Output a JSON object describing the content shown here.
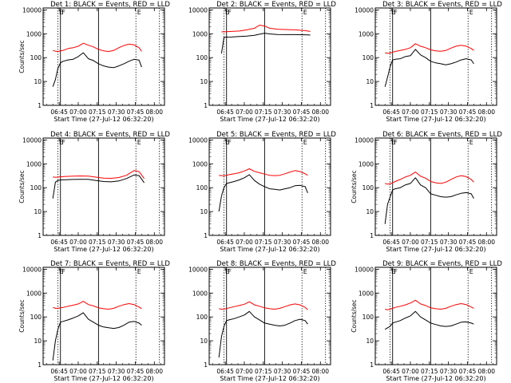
{
  "figure": {
    "time_range_label": "Start Time (27-Jul-12 06:32:20)",
    "x_ticks": [
      "06:45",
      "07:00",
      "07:15",
      "07:30",
      "07:45",
      "08:00"
    ],
    "x_tick_minutes": [
      45,
      60,
      75,
      90,
      105,
      120
    ],
    "x_range_minutes": [
      32.33,
      128.0
    ],
    "y_ticks": [
      "1",
      "10",
      "100",
      "1000",
      "10000"
    ],
    "y_tick_values": [
      1,
      10,
      100,
      1000,
      10000
    ],
    "y_range": [
      1,
      12000
    ],
    "y_scale": "log",
    "markers": [
      {
        "label": "E",
        "minute": 44.0,
        "style": "dotted"
      },
      {
        "label": "F",
        "minute": 46.0,
        "style": "solid"
      },
      {
        "label": "",
        "minute": 76.0,
        "style": "solid"
      },
      {
        "label": "E",
        "minute": 105.5,
        "style": "dotted"
      },
      {
        "label": "",
        "minute": 124.0,
        "style": "dotted"
      }
    ],
    "colors": {
      "events": "#000000",
      "lld": "#ff0000"
    }
  },
  "chart_data": [
    {
      "type": "line",
      "title": "Det 1: BLACK = Events, RED = LLD",
      "xlabel": "Start Time (27-Jul-12 06:32:20)",
      "ylabel": "Counts/sec",
      "scale": "log",
      "x": [
        40,
        42,
        44,
        46,
        48,
        52,
        56,
        60,
        64,
        68,
        72,
        76,
        80,
        84,
        88,
        92,
        96,
        100,
        104,
        108,
        110
      ],
      "series": [
        {
          "name": "Events",
          "color": "#000000",
          "values": [
            6,
            12,
            35,
            60,
            70,
            80,
            85,
            110,
            160,
            90,
            75,
            55,
            45,
            40,
            38,
            45,
            55,
            70,
            85,
            78,
            40
          ]
        },
        {
          "name": "LLD",
          "color": "#ff0000",
          "values": [
            200,
            185,
            180,
            190,
            200,
            240,
            260,
            300,
            400,
            330,
            280,
            220,
            190,
            180,
            200,
            260,
            320,
            370,
            340,
            260,
            180
          ]
        }
      ]
    },
    {
      "type": "line",
      "title": "Det 2: BLACK = Events, RED = LLD",
      "xlabel": "Start Time (27-Jul-12 06:32:20)",
      "ylabel": "",
      "scale": "log",
      "x": [
        42,
        44,
        46,
        50,
        56,
        62,
        68,
        72,
        76,
        80,
        86,
        92,
        100,
        108,
        112
      ],
      "series": [
        {
          "name": "Events",
          "color": "#000000",
          "values": [
            150,
            700,
            720,
            730,
            760,
            800,
            860,
            950,
            1050,
            980,
            930,
            920,
            920,
            900,
            880
          ]
        },
        {
          "name": "LLD",
          "color": "#ff0000",
          "values": [
            1200,
            1200,
            1220,
            1250,
            1300,
            1450,
            1700,
            2300,
            2100,
            1700,
            1550,
            1500,
            1450,
            1350,
            1250
          ]
        }
      ]
    },
    {
      "type": "line",
      "title": "Det 3: BLACK = Events, RED = LLD",
      "xlabel": "Start Time (27-Jul-12 06:32:20)",
      "ylabel": "",
      "scale": "log",
      "x": [
        40,
        42,
        44,
        46,
        48,
        52,
        56,
        60,
        64,
        68,
        72,
        76,
        80,
        84,
        88,
        92,
        96,
        100,
        104,
        108,
        110
      ],
      "series": [
        {
          "name": "Events",
          "color": "#000000",
          "values": [
            6,
            15,
            40,
            80,
            85,
            90,
            110,
            120,
            220,
            130,
            100,
            70,
            60,
            55,
            50,
            55,
            65,
            80,
            90,
            80,
            55
          ]
        },
        {
          "name": "LLD",
          "color": "#ff0000",
          "values": [
            160,
            150,
            155,
            170,
            180,
            200,
            220,
            260,
            380,
            300,
            260,
            210,
            190,
            185,
            200,
            250,
            300,
            330,
            300,
            240,
            200
          ]
        }
      ]
    },
    {
      "type": "line",
      "title": "Det 4: BLACK = Events, RED = LLD",
      "xlabel": "Start Time (27-Jul-12 06:32:20)",
      "ylabel": "Counts/sec",
      "scale": "log",
      "x": [
        40,
        42,
        44,
        46,
        50,
        56,
        62,
        68,
        74,
        80,
        86,
        92,
        98,
        104,
        108,
        112
      ],
      "series": [
        {
          "name": "Events",
          "color": "#000000",
          "values": [
            35,
            170,
            200,
            210,
            215,
            220,
            225,
            225,
            200,
            180,
            175,
            190,
            240,
            340,
            320,
            160
          ]
        },
        {
          "name": "LLD",
          "color": "#ff0000",
          "values": [
            280,
            270,
            275,
            285,
            295,
            305,
            310,
            305,
            275,
            250,
            245,
            265,
            330,
            520,
            470,
            240
          ]
        }
      ]
    },
    {
      "type": "line",
      "title": "Det 5: BLACK = Events, RED = LLD",
      "xlabel": "Start Time (27-Jul-12 06:32:20)",
      "ylabel": "",
      "scale": "log",
      "x": [
        40,
        42,
        44,
        46,
        48,
        52,
        56,
        60,
        64,
        68,
        72,
        76,
        80,
        84,
        88,
        92,
        96,
        100,
        104,
        108,
        110
      ],
      "series": [
        {
          "name": "Events",
          "color": "#000000",
          "values": [
            10,
            45,
            100,
            150,
            160,
            180,
            210,
            260,
            350,
            200,
            140,
            110,
            90,
            85,
            80,
            90,
            100,
            120,
            125,
            110,
            60
          ]
        },
        {
          "name": "LLD",
          "color": "#ff0000",
          "values": [
            330,
            320,
            320,
            330,
            350,
            380,
            420,
            500,
            620,
            480,
            420,
            370,
            330,
            320,
            330,
            380,
            450,
            520,
            470,
            380,
            330
          ]
        }
      ]
    },
    {
      "type": "line",
      "title": "Det 6: BLACK = Events, RED = LLD",
      "xlabel": "Start Time (27-Jul-12 06:32:20)",
      "ylabel": "Counts/sec",
      "scale": "log",
      "x": [
        40,
        42,
        44,
        46,
        48,
        52,
        56,
        60,
        64,
        68,
        72,
        76,
        80,
        84,
        88,
        92,
        96,
        100,
        104,
        108,
        110
      ],
      "series": [
        {
          "name": "Events",
          "color": "#000000",
          "values": [
            3,
            20,
            40,
            80,
            90,
            100,
            130,
            150,
            260,
            130,
            100,
            55,
            48,
            42,
            40,
            42,
            50,
            58,
            62,
            55,
            35
          ]
        },
        {
          "name": "LLD",
          "color": "#ff0000",
          "values": [
            150,
            140,
            145,
            160,
            180,
            220,
            280,
            330,
            450,
            300,
            250,
            180,
            160,
            150,
            170,
            220,
            280,
            320,
            290,
            220,
            170
          ]
        }
      ]
    },
    {
      "type": "line",
      "title": "Det 7: BLACK = Events, RED = LLD",
      "xlabel": "Start Time (27-Jul-12 06:32:20)",
      "ylabel": "Counts/sec",
      "scale": "log",
      "x": [
        40,
        42,
        44,
        46,
        48,
        52,
        56,
        60,
        64,
        68,
        72,
        76,
        80,
        84,
        88,
        92,
        96,
        100,
        104,
        108,
        110
      ],
      "series": [
        {
          "name": "Events",
          "color": "#000000",
          "values": [
            1.5,
            10,
            30,
            60,
            65,
            75,
            90,
            110,
            150,
            80,
            60,
            45,
            38,
            35,
            33,
            36,
            45,
            60,
            65,
            55,
            45
          ]
        },
        {
          "name": "LLD",
          "color": "#ff0000",
          "values": [
            250,
            230,
            230,
            240,
            250,
            280,
            310,
            350,
            450,
            330,
            290,
            240,
            220,
            210,
            230,
            280,
            330,
            360,
            330,
            260,
            220
          ]
        }
      ]
    },
    {
      "type": "line",
      "title": "Det 8: BLACK = Events, RED = LLD",
      "xlabel": "Start Time (27-Jul-12 06:32:20)",
      "ylabel": "",
      "scale": "log",
      "x": [
        40,
        42,
        44,
        46,
        48,
        52,
        56,
        60,
        64,
        68,
        72,
        76,
        80,
        84,
        88,
        92,
        96,
        100,
        104,
        108,
        110
      ],
      "series": [
        {
          "name": "Events",
          "color": "#000000",
          "values": [
            2,
            15,
            40,
            70,
            75,
            85,
            100,
            120,
            170,
            100,
            75,
            55,
            50,
            45,
            42,
            45,
            55,
            70,
            80,
            70,
            50
          ]
        },
        {
          "name": "LLD",
          "color": "#ff0000",
          "values": [
            220,
            210,
            215,
            225,
            240,
            270,
            300,
            340,
            430,
            320,
            280,
            240,
            220,
            210,
            230,
            270,
            320,
            350,
            320,
            250,
            200
          ]
        }
      ]
    },
    {
      "type": "line",
      "title": "Det 9: BLACK = Events, RED = LLD",
      "xlabel": "Start Time (27-Jul-12 06:32:20)",
      "ylabel": "Counts/sec",
      "scale": "log",
      "x": [
        40,
        42,
        44,
        46,
        48,
        52,
        56,
        60,
        64,
        68,
        72,
        76,
        80,
        84,
        88,
        92,
        96,
        100,
        104,
        108,
        110
      ],
      "series": [
        {
          "name": "Events",
          "color": "#000000",
          "values": [
            30,
            35,
            40,
            55,
            60,
            70,
            90,
            110,
            170,
            100,
            75,
            55,
            48,
            42,
            40,
            42,
            50,
            60,
            62,
            55,
            50
          ]
        },
        {
          "name": "LLD",
          "color": "#ff0000",
          "values": [
            210,
            200,
            210,
            230,
            250,
            280,
            320,
            380,
            500,
            350,
            300,
            240,
            220,
            210,
            230,
            280,
            330,
            360,
            330,
            260,
            230
          ]
        }
      ]
    }
  ]
}
